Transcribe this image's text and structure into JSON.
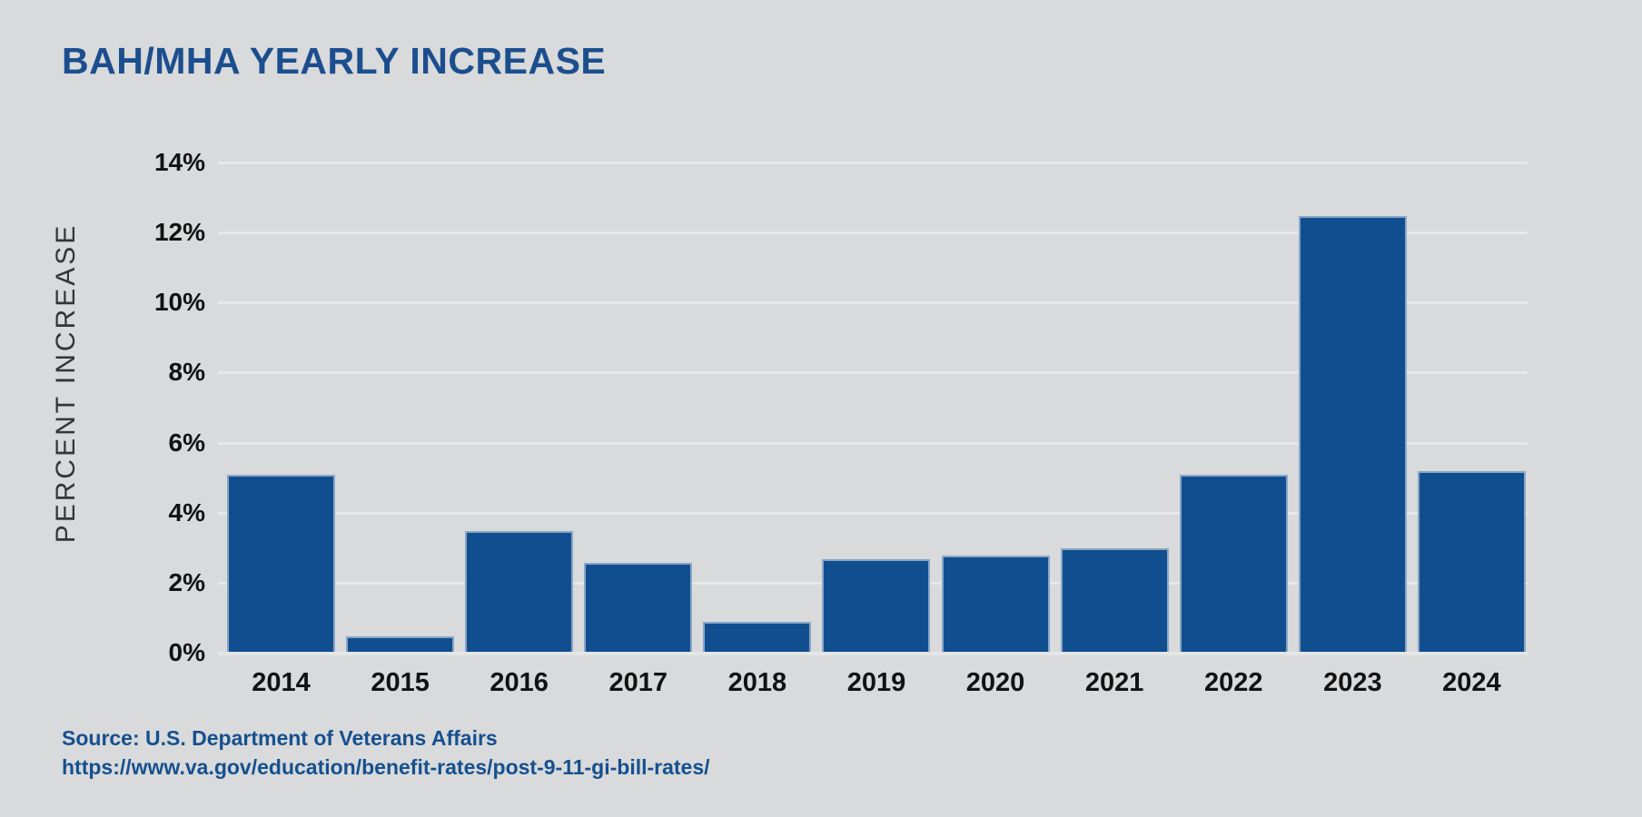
{
  "header": {
    "title": "BAH/MHA YEARLY INCREASE"
  },
  "source": {
    "line1": "Source: U.S. Department of Veterans Affairs",
    "line2": "https://www.va.gov/education/benefit-rates/post-9-11-gi-bill-rates/"
  },
  "colors": {
    "background": "#d9dadb",
    "bar": "#104e8f",
    "title_text": "#1b4e8e",
    "source_text": "#15508f",
    "gridline": "#e7e8ea",
    "tick_text": "#121212"
  },
  "chart_data": {
    "type": "bar",
    "title": "BAH/MHA YEARLY INCREASE",
    "categories": [
      "2014",
      "2015",
      "2016",
      "2017",
      "2018",
      "2019",
      "2020",
      "2021",
      "2022",
      "2023",
      "2024"
    ],
    "values": [
      5.1,
      0.5,
      3.5,
      2.6,
      0.9,
      2.7,
      2.8,
      3.0,
      5.1,
      12.5,
      5.2
    ],
    "xlabel": "",
    "ylabel": "PERCENT INCREASE",
    "ylim": [
      0,
      14
    ],
    "ytick_step": 2,
    "ytick_labels": [
      "0%",
      "2%",
      "4%",
      "6%",
      "8%",
      "10%",
      "12%",
      "14%"
    ],
    "grid": true,
    "legend": false,
    "bar_color": "#104e8f"
  }
}
